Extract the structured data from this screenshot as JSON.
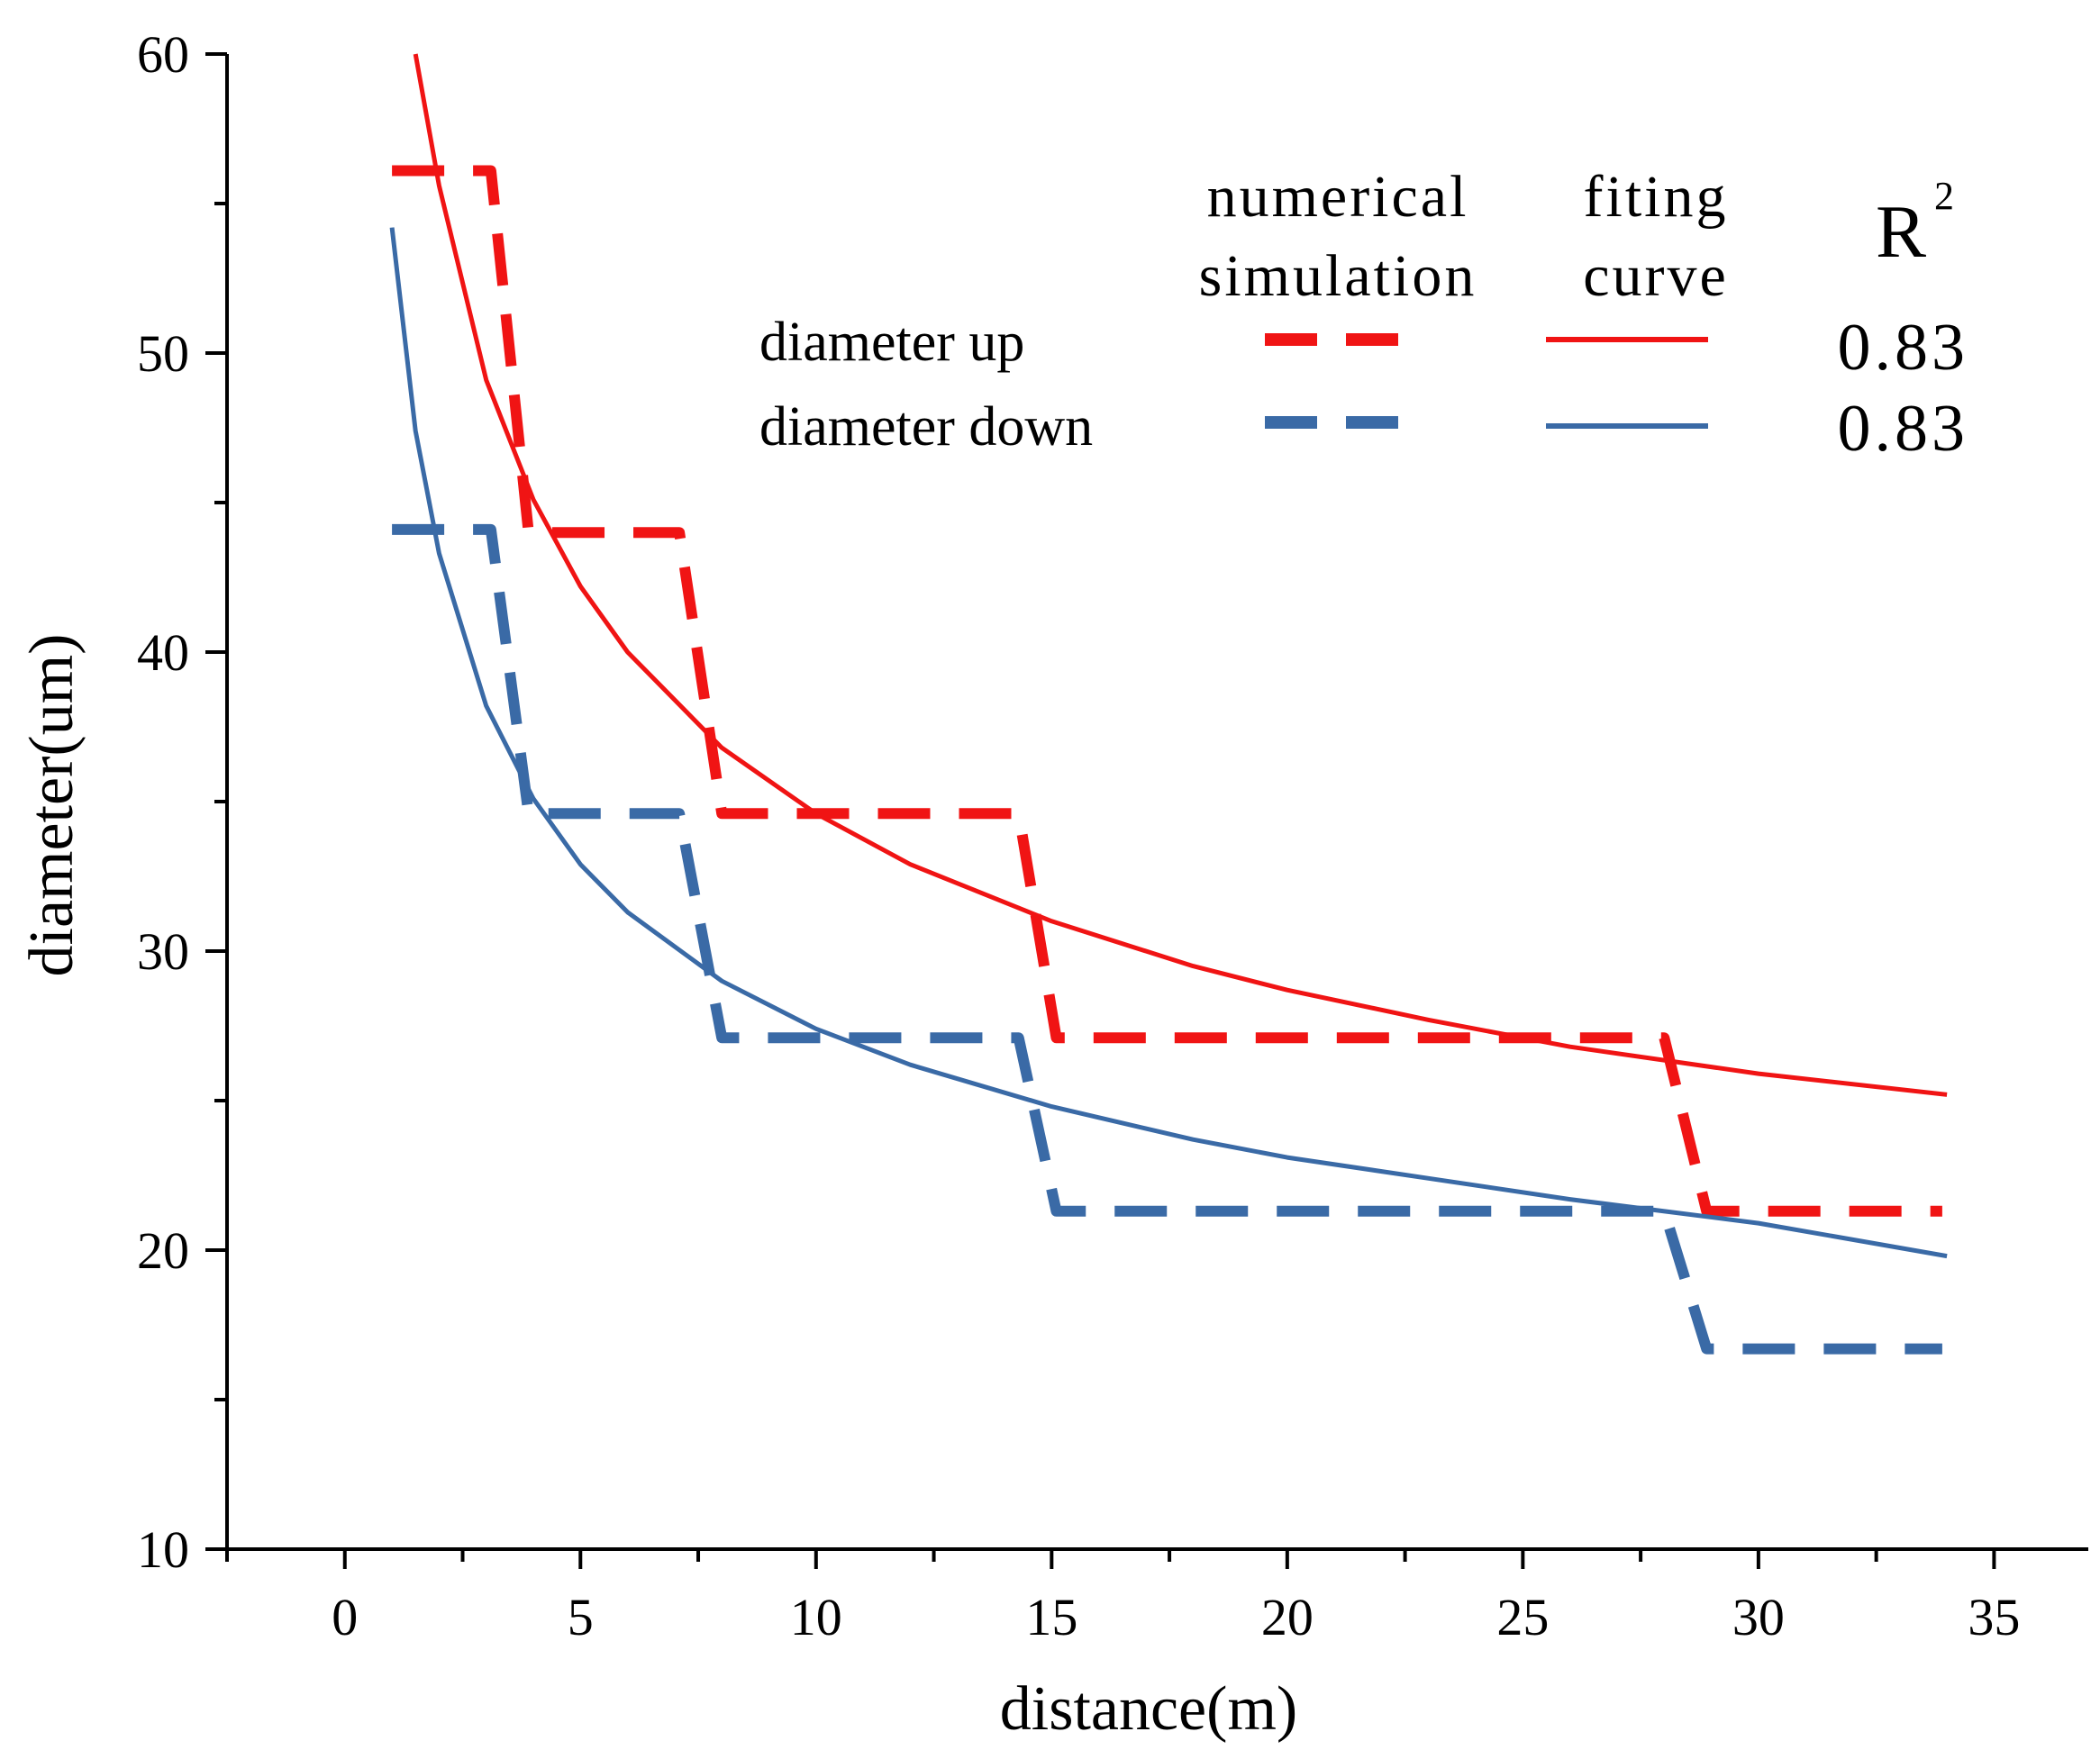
{
  "chart_data": {
    "type": "line",
    "title": "",
    "xlabel": "distance(m)",
    "ylabel": "diameter(um)",
    "xlim": [
      -2.5,
      37
    ],
    "ylim": [
      10,
      60
    ],
    "x_ticks": [
      "0",
      "5",
      "10",
      "15",
      "20",
      "25",
      "30",
      "35"
    ],
    "y_ticks": [
      "10",
      "20",
      "30",
      "40",
      "50",
      "60"
    ],
    "grid": false,
    "legend": {
      "placement": "top-right",
      "col_headers": [
        "numerical simulation",
        "fiting curve"
      ],
      "col_header_lines": [
        [
          "numerical",
          "simulation"
        ],
        [
          "fiting",
          "curve"
        ]
      ],
      "r2_header": "R",
      "r2_superscript": "2",
      "rows": [
        {
          "label": "diameter up",
          "r2": "0.83"
        },
        {
          "label": "diameter down",
          "r2": "0.83"
        }
      ]
    },
    "series": [
      {
        "name": "diameter up (numerical simulation)",
        "style": "dashed",
        "color": "#f01414",
        "x": [
          1.0,
          3.1,
          3.9,
          7.1,
          8.0,
          14.3,
          15.1,
          28.0,
          28.9,
          33.9
        ],
        "y": [
          56.1,
          56.1,
          44.0,
          44.0,
          34.6,
          34.6,
          27.1,
          27.1,
          21.3,
          21.3
        ]
      },
      {
        "name": "diameter down (numerical simulation)",
        "style": "dashed",
        "color": "#3a6aa6",
        "x": [
          1.0,
          3.1,
          3.9,
          7.1,
          8.0,
          14.3,
          15.1,
          28.0,
          28.9,
          33.9
        ],
        "y": [
          44.1,
          44.1,
          34.6,
          34.6,
          27.1,
          27.1,
          21.3,
          21.3,
          16.7,
          16.7
        ]
      },
      {
        "name": "diameter up (fiting curve)",
        "style": "solid",
        "color": "#f01414",
        "x": [
          1.5,
          2,
          3,
          4,
          5,
          6,
          8,
          10,
          12,
          15,
          18,
          20,
          23,
          26,
          30,
          34
        ],
        "y": [
          60.0,
          55.6,
          49.1,
          45.1,
          42.2,
          40.0,
          36.8,
          34.6,
          32.9,
          31.0,
          29.5,
          28.7,
          27.7,
          26.8,
          25.9,
          25.2
        ]
      },
      {
        "name": "diameter down (fiting curve)",
        "style": "solid",
        "color": "#3a6aa6",
        "x": [
          1.0,
          1.5,
          2,
          3,
          4,
          5,
          6,
          8,
          10,
          12,
          15,
          18,
          20,
          23,
          26,
          30,
          34
        ],
        "y": [
          54.2,
          47.4,
          43.3,
          38.2,
          35.1,
          32.9,
          31.3,
          29.0,
          27.4,
          26.2,
          24.8,
          23.7,
          23.1,
          22.4,
          21.7,
          20.9,
          19.8
        ]
      }
    ]
  }
}
